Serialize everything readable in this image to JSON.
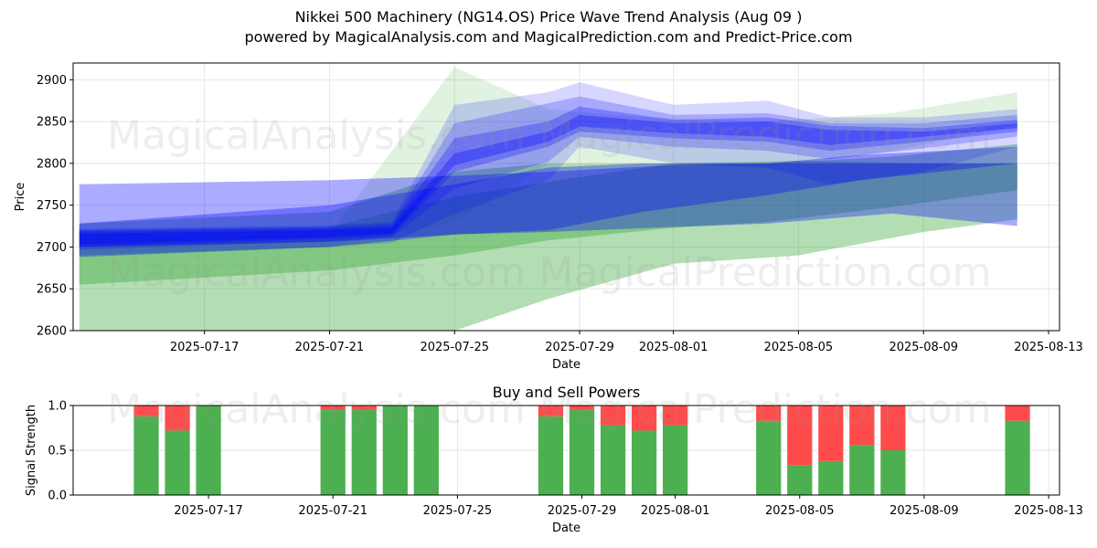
{
  "title": {
    "line1": "Nikkei 500 Machinery (NG14.OS) Price Wave Trend Analysis (Aug 09 )",
    "line2": "powered by MagicalAnalysis.com and MagicalPrediction.com and Predict-Price.com"
  },
  "watermarks": [
    "MagicalAnalysis.com",
    "MagicalPrediction.com"
  ],
  "colors": {
    "green_band": "#2ca02c",
    "blue_band": "#0000ff",
    "buy": "#4caf50",
    "sell": "#ff4b4b"
  },
  "chart_data": [
    {
      "type": "area",
      "xlabel": "Date",
      "ylabel": "Price",
      "ylim": [
        2600,
        2920
      ],
      "xlim": [
        "2025-07-13",
        "2025-08-13"
      ],
      "yticks": [
        2600,
        2650,
        2700,
        2750,
        2800,
        2850,
        2900
      ],
      "xtick_labels": [
        "2025-07-17",
        "2025-07-21",
        "2025-07-25",
        "2025-07-29",
        "2025-08-01",
        "2025-08-05",
        "2025-08-09",
        "2025-08-13"
      ],
      "grid": true,
      "series": [
        {
          "color": "green",
          "dates": [
            "2025-07-13",
            "2025-07-21",
            "2025-07-25",
            "2025-07-28",
            "2025-08-01",
            "2025-08-04",
            "2025-08-08",
            "2025-08-12"
          ],
          "upper": [
            2728,
            2742,
            2790,
            2800,
            2800,
            2800,
            2808,
            2823
          ],
          "lower": [
            2655,
            2672,
            2690,
            2708,
            2723,
            2730,
            2748,
            2768
          ]
        },
        {
          "color": "green",
          "dates": [
            "2025-07-13",
            "2025-07-21",
            "2025-07-25",
            "2025-07-28",
            "2025-08-01",
            "2025-08-05",
            "2025-08-09",
            "2025-08-12"
          ],
          "upper": [
            2720,
            2724,
            2760,
            2778,
            2800,
            2803,
            2800,
            2800
          ],
          "lower": [
            2600,
            2590,
            2600,
            2638,
            2680,
            2690,
            2718,
            2733
          ]
        },
        {
          "color": "green",
          "dates": [
            "2025-07-13",
            "2025-07-21",
            "2025-07-25",
            "2025-07-28",
            "2025-07-31",
            "2025-08-04",
            "2025-08-08",
            "2025-08-12"
          ],
          "upper": [
            2712,
            2715,
            2915,
            2865,
            2855,
            2850,
            2860,
            2885
          ],
          "lower": [
            2690,
            2700,
            2730,
            2800,
            2800,
            2795,
            2815,
            2845
          ]
        },
        {
          "color": "blue",
          "dates": [
            "2025-07-13",
            "2025-07-21",
            "2025-07-25",
            "2025-07-28",
            "2025-08-01",
            "2025-08-04",
            "2025-08-08",
            "2025-08-12"
          ],
          "upper": [
            2775,
            2780,
            2785,
            2790,
            2798,
            2800,
            2800,
            2800
          ],
          "lower": [
            2700,
            2706,
            2715,
            2718,
            2724,
            2728,
            2740,
            2725
          ]
        },
        {
          "color": "blue",
          "dates": [
            "2025-07-13",
            "2025-07-21",
            "2025-07-25",
            "2025-07-28",
            "2025-07-31",
            "2025-08-04",
            "2025-08-07",
            "2025-08-12"
          ],
          "upper": [
            2728,
            2750,
            2775,
            2795,
            2800,
            2800,
            2810,
            2820
          ],
          "lower": [
            2688,
            2700,
            2715,
            2720,
            2742,
            2762,
            2780,
            2800
          ]
        },
        {
          "color": "blue",
          "dates": [
            "2025-07-13",
            "2025-07-21",
            "2025-07-23",
            "2025-07-25",
            "2025-07-28",
            "2025-07-29",
            "2025-08-01",
            "2025-08-04",
            "2025-08-06",
            "2025-08-09",
            "2025-08-12"
          ],
          "upper": [
            2722,
            2726,
            2730,
            2870,
            2885,
            2897,
            2870,
            2875,
            2855,
            2855,
            2865
          ],
          "lower": [
            2690,
            2700,
            2705,
            2740,
            2780,
            2820,
            2800,
            2795,
            2775,
            2790,
            2820
          ]
        },
        {
          "color": "blue",
          "dates": [
            "2025-07-13",
            "2025-07-21",
            "2025-07-23",
            "2025-07-25",
            "2025-07-28",
            "2025-07-29",
            "2025-08-01",
            "2025-08-04",
            "2025-08-06",
            "2025-08-09",
            "2025-08-12"
          ],
          "upper": [
            2720,
            2724,
            2728,
            2848,
            2872,
            2880,
            2858,
            2860,
            2848,
            2848,
            2858
          ],
          "lower": [
            2697,
            2707,
            2712,
            2770,
            2802,
            2832,
            2820,
            2815,
            2805,
            2818,
            2832
          ]
        },
        {
          "color": "blue",
          "dates": [
            "2025-07-13",
            "2025-07-21",
            "2025-07-23",
            "2025-07-25",
            "2025-07-28",
            "2025-07-29",
            "2025-08-01",
            "2025-08-04",
            "2025-08-06",
            "2025-08-09",
            "2025-08-12"
          ],
          "upper": [
            2718,
            2722,
            2725,
            2830,
            2850,
            2868,
            2852,
            2855,
            2845,
            2842,
            2852
          ],
          "lower": [
            2700,
            2710,
            2714,
            2790,
            2820,
            2838,
            2830,
            2826,
            2815,
            2826,
            2838
          ]
        },
        {
          "color": "blue",
          "dates": [
            "2025-07-13",
            "2025-07-21",
            "2025-07-23",
            "2025-07-25",
            "2025-07-28",
            "2025-07-29",
            "2025-08-01",
            "2025-08-04",
            "2025-08-06",
            "2025-08-09",
            "2025-08-12"
          ],
          "upper": [
            2716,
            2720,
            2723,
            2812,
            2838,
            2858,
            2848,
            2850,
            2840,
            2838,
            2848
          ],
          "lower": [
            2703,
            2712,
            2716,
            2798,
            2826,
            2844,
            2836,
            2832,
            2822,
            2832,
            2842
          ]
        }
      ]
    },
    {
      "type": "bar",
      "title": "Buy and Sell Powers",
      "xlabel": "Date",
      "ylabel": "Signal Strength",
      "ylim": [
        0,
        1.0
      ],
      "yticks": [
        "0.0",
        "0.5",
        "1.0"
      ],
      "xlim": [
        "2025-07-13",
        "2025-08-13"
      ],
      "xtick_labels": [
        "2025-07-17",
        "2025-07-21",
        "2025-07-25",
        "2025-07-29",
        "2025-08-01",
        "2025-08-05",
        "2025-08-09",
        "2025-08-13"
      ],
      "grid": true,
      "categories": [
        "2025-07-15",
        "2025-07-16",
        "2025-07-17",
        "2025-07-21",
        "2025-07-22",
        "2025-07-23",
        "2025-07-24",
        "2025-07-28",
        "2025-07-29",
        "2025-07-30",
        "2025-07-31",
        "2025-08-01",
        "2025-08-04",
        "2025-08-05",
        "2025-08-06",
        "2025-08-07",
        "2025-08-08",
        "2025-08-12"
      ],
      "series": [
        {
          "name": "Buy",
          "values": [
            0.88,
            0.72,
            1.0,
            0.95,
            0.95,
            1.0,
            1.0,
            0.88,
            0.95,
            0.78,
            0.72,
            0.78,
            0.83,
            0.33,
            0.38,
            0.56,
            0.5,
            0.83
          ]
        },
        {
          "name": "Sell",
          "values": [
            0.12,
            0.28,
            0.0,
            0.05,
            0.05,
            0.0,
            0.0,
            0.12,
            0.05,
            0.22,
            0.28,
            0.22,
            0.17,
            0.67,
            0.62,
            0.44,
            0.5,
            0.17
          ]
        }
      ]
    }
  ]
}
